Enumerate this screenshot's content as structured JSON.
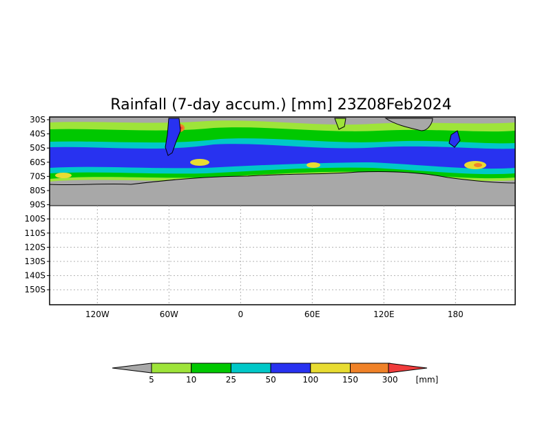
{
  "map": {
    "title": "Rainfall (7-day accum.) [mm] 23Z08Feb2024",
    "lat_labels": [
      "30S",
      "40S",
      "50S",
      "60S",
      "70S",
      "80S",
      "90S",
      "100S",
      "110S",
      "120S",
      "130S",
      "140S",
      "150S"
    ],
    "lon_labels": [
      "120W",
      "60W",
      "0",
      "60E",
      "120E",
      "180"
    ],
    "colorbar": {
      "unit": "[mm]",
      "levels": [
        "5",
        "10",
        "25",
        "50",
        "100",
        "150",
        "300"
      ],
      "colors": [
        "#a8a8a8",
        "#9ee43a",
        "#00c800",
        "#00c8c8",
        "#2832f0",
        "#e8dc32",
        "#f08228",
        "#f03c3c"
      ]
    },
    "colors": {
      "no_data": "#a8a8a8",
      "frame": "#000000",
      "grid": "#b0b0b0"
    }
  }
}
